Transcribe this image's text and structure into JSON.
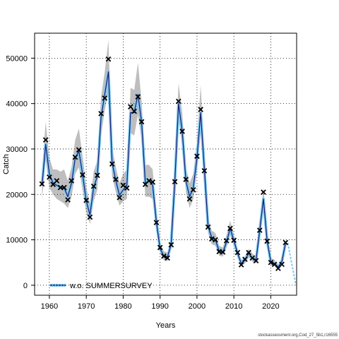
{
  "chart_data": {
    "type": "line",
    "xlabel": "Years",
    "ylabel": "Catch",
    "xlim": [
      1956,
      2027
    ],
    "ylim": [
      -2200,
      55500
    ],
    "x_ticks": [
      1960,
      1970,
      1980,
      1990,
      2000,
      2010,
      2020
    ],
    "y_ticks": [
      0,
      10000,
      20000,
      30000,
      40000,
      50000
    ],
    "grid": true,
    "legend_position": "bottom-left",
    "colors": {
      "band": "#bebebe",
      "fit_line": "#1c1c6e",
      "fit_line_highlight": "#7ec8f0",
      "observed_marker": "#000000",
      "grid": "#000000"
    },
    "series": [
      {
        "name": "w.o. SUMMERSURVEY",
        "kind": "fit",
        "x": [
          1958,
          1959,
          1960,
          1961,
          1962,
          1963,
          1964,
          1965,
          1966,
          1967,
          1968,
          1969,
          1970,
          1971,
          1972,
          1973,
          1974,
          1975,
          1976,
          1977,
          1978,
          1979,
          1980,
          1981,
          1982,
          1983,
          1984,
          1985,
          1986,
          1987,
          1988,
          1989,
          1990,
          1991,
          1992,
          1993,
          1994,
          1995,
          1996,
          1997,
          1998,
          1999,
          2000,
          2001,
          2002,
          2003,
          2004,
          2005,
          2006,
          2007,
          2008,
          2009,
          2010,
          2011,
          2012,
          2013,
          2014,
          2015,
          2016,
          2017,
          2018,
          2019,
          2020,
          2021,
          2022,
          2023,
          2024,
          2025
        ],
        "y": [
          22000,
          31000,
          24500,
          22500,
          22000,
          21500,
          21500,
          19500,
          22500,
          28000,
          29500,
          24500,
          18500,
          15500,
          21500,
          24000,
          37000,
          42000,
          47000,
          27000,
          23000,
          19800,
          21000,
          22000,
          38000,
          38000,
          42000,
          36000,
          22500,
          23000,
          22000,
          14000,
          8000,
          6500,
          6200,
          9000,
          23000,
          40000,
          34000,
          23000,
          19500,
          21500,
          28000,
          38000,
          25500,
          13000,
          10500,
          10000,
          7500,
          7200,
          9500,
          12500,
          9800,
          7000,
          4800,
          5500,
          7000,
          6000,
          5500,
          12000,
          19000,
          9800,
          5200,
          4800,
          4000,
          5200,
          9300,
          null
        ]
      },
      {
        "name": "confidence interval",
        "kind": "band",
        "x": [
          1958,
          1959,
          1960,
          1961,
          1962,
          1963,
          1964,
          1965,
          1966,
          1967,
          1968,
          1969,
          1970,
          1971,
          1972,
          1973,
          1974,
          1975,
          1976,
          1977,
          1978,
          1979,
          1980,
          1981,
          1982,
          1983,
          1984,
          1985,
          1986,
          1987,
          1988,
          1989,
          1990,
          1991,
          1992,
          1993,
          1994,
          1995,
          1996,
          1997,
          1998,
          1999,
          2000,
          2001,
          2002,
          2003,
          2004,
          2005,
          2006,
          2007,
          2008,
          2009,
          2010,
          2011,
          2012,
          2013,
          2014,
          2015,
          2016,
          2017,
          2018,
          2019,
          2020,
          2021,
          2022,
          2023,
          2024
        ],
        "lower": [
          19000,
          27500,
          21500,
          20000,
          19000,
          18500,
          18000,
          17000,
          19500,
          24500,
          26000,
          21000,
          16000,
          13500,
          18500,
          21000,
          33000,
          38500,
          42500,
          24000,
          20500,
          17500,
          18500,
          19000,
          33500,
          33000,
          37500,
          32000,
          19500,
          19500,
          19000,
          12000,
          7000,
          5500,
          5300,
          7800,
          20000,
          36500,
          30500,
          20500,
          17000,
          19000,
          25000,
          33500,
          22500,
          11500,
          9000,
          8700,
          6500,
          6300,
          8200,
          11000,
          8600,
          6100,
          4200,
          4800,
          6100,
          5200,
          4800,
          10500,
          16500,
          8600,
          4500,
          4200,
          3500,
          4500,
          8200
        ],
        "upper": [
          25000,
          36000,
          28000,
          25500,
          25500,
          25000,
          25500,
          23000,
          26000,
          32000,
          34500,
          28500,
          21500,
          18000,
          25000,
          27500,
          41500,
          47000,
          54000,
          30500,
          26000,
          22500,
          24500,
          25500,
          43500,
          43000,
          49000,
          40500,
          26500,
          26500,
          25500,
          16000,
          9200,
          7500,
          7200,
          10500,
          26000,
          44500,
          38000,
          26000,
          22500,
          24500,
          31500,
          44000,
          29000,
          14800,
          12000,
          11500,
          8700,
          8300,
          11000,
          14200,
          11200,
          8000,
          5500,
          6400,
          8000,
          7000,
          6300,
          13500,
          21500,
          11200,
          6000,
          5600,
          4600,
          6000,
          10500
        ]
      },
      {
        "name": "observed",
        "kind": "points",
        "x": [
          1958,
          1959,
          1960,
          1961,
          1962,
          1963,
          1964,
          1965,
          1966,
          1967,
          1968,
          1969,
          1970,
          1971,
          1972,
          1973,
          1974,
          1975,
          1976,
          1977,
          1978,
          1979,
          1980,
          1981,
          1982,
          1983,
          1984,
          1985,
          1986,
          1987,
          1988,
          1989,
          1990,
          1991,
          1992,
          1993,
          1994,
          1995,
          1996,
          1997,
          1998,
          1999,
          2000,
          2001,
          2002,
          2003,
          2004,
          2005,
          2006,
          2007,
          2008,
          2009,
          2010,
          2011,
          2012,
          2013,
          2014,
          2015,
          2016,
          2017,
          2018,
          2019,
          2020,
          2021,
          2022,
          2023,
          2024
        ],
        "y": [
          22300,
          32000,
          23800,
          22200,
          23000,
          21500,
          21500,
          18800,
          23000,
          28200,
          29800,
          24300,
          18700,
          15000,
          21800,
          24200,
          37800,
          41200,
          49800,
          26700,
          23300,
          19300,
          22000,
          21400,
          39300,
          38300,
          41500,
          36000,
          22200,
          23000,
          22700,
          13800,
          8300,
          6400,
          6000,
          8900,
          22800,
          40500,
          33900,
          23300,
          19000,
          21000,
          28400,
          38700,
          25200,
          12800,
          10200,
          10000,
          7400,
          7300,
          9800,
          12500,
          9900,
          7200,
          4500,
          5700,
          7200,
          6000,
          5400,
          12100,
          20500,
          9700,
          5000,
          4600,
          3700,
          4600,
          9400
        ]
      }
    ]
  },
  "source_text": "stockassessment.org,Cod_27_5b1,r16555"
}
